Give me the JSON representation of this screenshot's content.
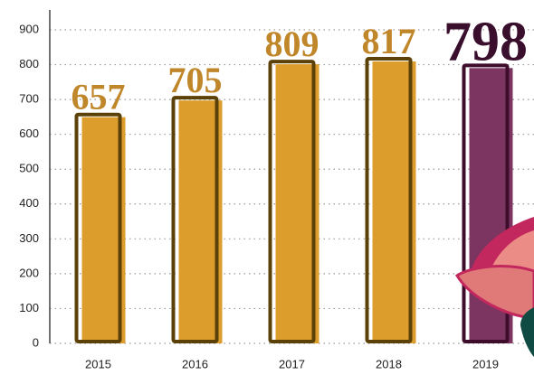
{
  "chart_data": {
    "type": "bar",
    "categories": [
      "2015",
      "2016",
      "2017",
      "2018",
      "2019"
    ],
    "values": [
      657,
      705,
      809,
      817,
      798
    ],
    "colors": [
      "#dc9d2c",
      "#dc9d2c",
      "#dc9d2c",
      "#dc9d2c",
      "#7b3560"
    ],
    "edge_colors": [
      "#5b4108",
      "#5b4108",
      "#5b4108",
      "#5b4108",
      "#3e0d2c"
    ],
    "label_colors": [
      "#c0862a",
      "#c0862a",
      "#c0862a",
      "#c0862a",
      "#3a0f2e"
    ],
    "ylim": [
      0,
      900
    ],
    "yticks": [
      0,
      100,
      200,
      300,
      400,
      500,
      600,
      700,
      800,
      900
    ],
    "grid": true
  }
}
